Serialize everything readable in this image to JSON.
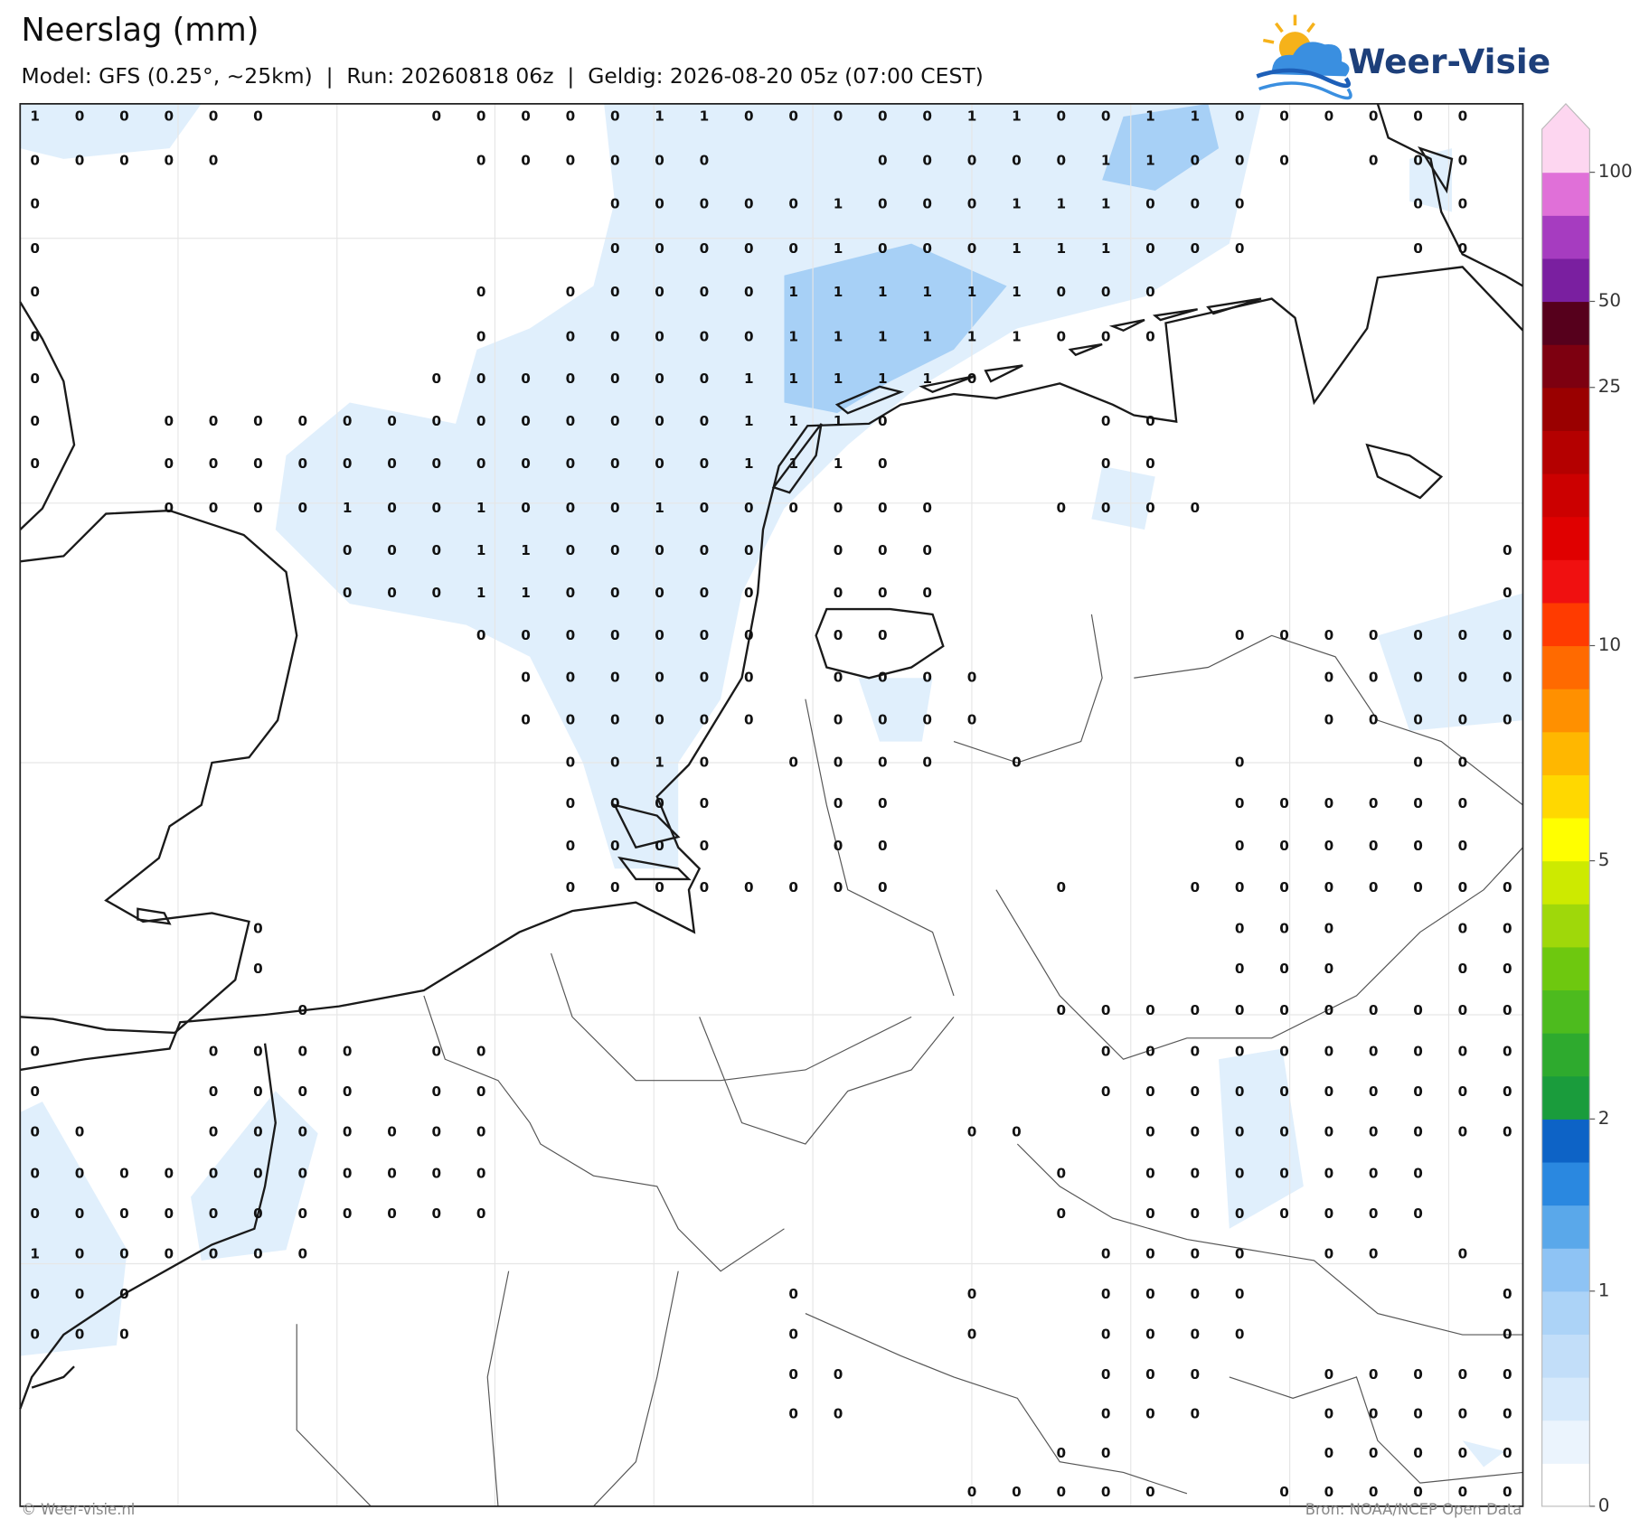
{
  "header": {
    "title": "Neerslag (mm)",
    "subtitle": "Model: GFS (0.25°, ~25km)  |  Run: 20260818 06z  |  Geldig: 2026-08-20 05z (07:00 CEST)",
    "logo": "Weer-Visie"
  },
  "map": {
    "grid_values": [
      [
        1,
        0,
        0,
        0,
        0,
        0,
        null,
        null,
        null,
        0,
        0,
        0,
        0,
        0,
        1,
        1,
        0,
        0,
        0,
        0,
        0,
        1,
        1,
        0,
        0,
        1,
        1,
        0,
        0,
        0,
        0,
        0,
        0,
        null
      ],
      [
        0,
        0,
        0,
        0,
        0,
        null,
        null,
        null,
        null,
        null,
        0,
        0,
        0,
        0,
        0,
        0,
        null,
        null,
        null,
        0,
        0,
        0,
        0,
        0,
        1,
        1,
        0,
        0,
        0,
        null,
        0,
        0,
        0,
        null
      ],
      [
        0,
        null,
        null,
        null,
        null,
        null,
        null,
        null,
        null,
        null,
        null,
        null,
        null,
        0,
        0,
        0,
        0,
        0,
        1,
        0,
        0,
        0,
        1,
        1,
        1,
        0,
        0,
        0,
        null,
        null,
        null,
        0,
        0,
        null
      ],
      [
        0,
        null,
        null,
        null,
        null,
        null,
        null,
        null,
        null,
        null,
        null,
        null,
        null,
        0,
        0,
        0,
        0,
        0,
        1,
        0,
        0,
        0,
        1,
        1,
        1,
        0,
        0,
        0,
        null,
        null,
        null,
        0,
        0,
        null
      ],
      [
        0,
        null,
        null,
        null,
        null,
        null,
        null,
        null,
        null,
        null,
        0,
        null,
        0,
        0,
        0,
        0,
        0,
        1,
        1,
        1,
        1,
        1,
        1,
        0,
        0,
        0,
        null,
        null,
        null,
        null,
        null,
        null,
        null,
        null
      ],
      [
        0,
        null,
        null,
        null,
        null,
        null,
        null,
        null,
        null,
        null,
        0,
        null,
        0,
        0,
        0,
        0,
        0,
        1,
        1,
        1,
        1,
        1,
        1,
        0,
        0,
        0,
        null,
        null,
        null,
        null,
        null,
        null,
        null,
        null
      ],
      [
        0,
        null,
        null,
        null,
        null,
        null,
        null,
        null,
        null,
        0,
        0,
        0,
        0,
        0,
        0,
        0,
        1,
        1,
        1,
        1,
        1,
        0,
        null,
        null,
        null,
        null,
        null,
        null,
        null,
        null,
        null,
        null,
        null,
        null
      ],
      [
        0,
        null,
        null,
        0,
        0,
        0,
        0,
        0,
        0,
        0,
        0,
        0,
        0,
        0,
        0,
        0,
        1,
        1,
        1,
        0,
        null,
        null,
        null,
        null,
        0,
        0,
        null,
        null,
        null,
        null,
        null,
        null,
        null,
        null
      ],
      [
        0,
        null,
        null,
        0,
        0,
        0,
        0,
        0,
        0,
        0,
        0,
        0,
        0,
        0,
        0,
        0,
        1,
        1,
        1,
        0,
        null,
        null,
        null,
        null,
        0,
        0,
        null,
        null,
        null,
        null,
        null,
        null,
        null,
        null
      ],
      [
        null,
        null,
        null,
        0,
        0,
        0,
        0,
        1,
        0,
        0,
        1,
        0,
        0,
        0,
        1,
        0,
        0,
        0,
        0,
        0,
        0,
        null,
        null,
        0,
        0,
        0,
        0,
        null,
        null,
        null,
        null,
        null,
        null,
        null
      ],
      [
        null,
        null,
        null,
        null,
        null,
        null,
        null,
        0,
        0,
        0,
        1,
        1,
        0,
        0,
        0,
        0,
        0,
        null,
        0,
        0,
        0,
        null,
        null,
        null,
        null,
        null,
        null,
        null,
        null,
        null,
        null,
        null,
        null,
        0
      ],
      [
        null,
        null,
        null,
        null,
        null,
        null,
        null,
        0,
        0,
        0,
        1,
        1,
        0,
        0,
        0,
        0,
        0,
        null,
        0,
        0,
        0,
        null,
        null,
        null,
        null,
        null,
        null,
        null,
        null,
        null,
        null,
        null,
        null,
        0
      ],
      [
        null,
        null,
        null,
        null,
        null,
        null,
        null,
        null,
        null,
        null,
        0,
        0,
        0,
        0,
        0,
        0,
        0,
        null,
        0,
        0,
        null,
        null,
        null,
        null,
        null,
        null,
        null,
        0,
        0,
        0,
        0,
        0,
        0,
        0
      ],
      [
        null,
        null,
        null,
        null,
        null,
        null,
        null,
        null,
        null,
        null,
        null,
        0,
        0,
        0,
        0,
        0,
        0,
        null,
        0,
        0,
        0,
        0,
        null,
        null,
        null,
        null,
        null,
        null,
        null,
        0,
        0,
        0,
        0,
        0
      ],
      [
        null,
        null,
        null,
        null,
        null,
        null,
        null,
        null,
        null,
        null,
        null,
        0,
        0,
        0,
        0,
        0,
        0,
        null,
        0,
        0,
        0,
        0,
        null,
        null,
        null,
        null,
        null,
        null,
        null,
        0,
        0,
        0,
        0,
        0
      ],
      [
        null,
        null,
        null,
        null,
        null,
        null,
        null,
        null,
        null,
        null,
        null,
        null,
        0,
        0,
        1,
        0,
        null,
        0,
        0,
        0,
        0,
        null,
        0,
        null,
        null,
        null,
        null,
        0,
        null,
        null,
        null,
        0,
        0,
        null
      ],
      [
        null,
        null,
        null,
        null,
        null,
        null,
        null,
        null,
        null,
        null,
        null,
        null,
        0,
        0,
        0,
        0,
        null,
        null,
        0,
        0,
        null,
        null,
        null,
        null,
        null,
        null,
        null,
        0,
        0,
        0,
        0,
        0,
        0,
        null
      ],
      [
        null,
        null,
        null,
        null,
        null,
        null,
        null,
        null,
        null,
        null,
        null,
        null,
        0,
        0,
        0,
        0,
        null,
        null,
        0,
        0,
        null,
        null,
        null,
        null,
        null,
        null,
        null,
        0,
        0,
        0,
        0,
        0,
        0,
        null
      ],
      [
        null,
        null,
        null,
        null,
        null,
        null,
        null,
        null,
        null,
        null,
        null,
        null,
        0,
        0,
        0,
        0,
        0,
        0,
        0,
        0,
        null,
        null,
        null,
        0,
        null,
        null,
        0,
        0,
        0,
        0,
        0,
        0,
        0,
        0
      ],
      [
        null,
        null,
        null,
        null,
        null,
        0,
        null,
        null,
        null,
        null,
        null,
        null,
        null,
        null,
        null,
        null,
        null,
        null,
        null,
        null,
        null,
        null,
        null,
        null,
        null,
        null,
        null,
        0,
        0,
        0,
        null,
        null,
        0,
        0
      ],
      [
        null,
        null,
        null,
        null,
        null,
        0,
        null,
        null,
        null,
        null,
        null,
        null,
        null,
        null,
        null,
        null,
        null,
        null,
        null,
        null,
        null,
        null,
        null,
        null,
        null,
        null,
        null,
        0,
        0,
        0,
        null,
        null,
        0,
        0
      ],
      [
        null,
        null,
        null,
        null,
        null,
        null,
        0,
        null,
        null,
        null,
        null,
        null,
        null,
        null,
        null,
        null,
        null,
        null,
        null,
        null,
        null,
        null,
        null,
        0,
        0,
        0,
        0,
        0,
        0,
        0,
        0,
        0,
        0,
        0
      ],
      [
        0,
        null,
        null,
        null,
        0,
        0,
        0,
        0,
        null,
        0,
        0,
        null,
        null,
        null,
        null,
        null,
        null,
        null,
        null,
        null,
        null,
        null,
        null,
        null,
        0,
        0,
        0,
        0,
        0,
        0,
        0,
        0,
        0,
        0
      ],
      [
        0,
        null,
        null,
        null,
        0,
        0,
        0,
        0,
        null,
        0,
        0,
        null,
        null,
        null,
        null,
        null,
        null,
        null,
        null,
        null,
        null,
        null,
        null,
        null,
        0,
        0,
        0,
        0,
        0,
        0,
        0,
        0,
        0,
        0
      ],
      [
        0,
        0,
        null,
        null,
        0,
        0,
        0,
        0,
        0,
        0,
        0,
        null,
        null,
        null,
        null,
        null,
        null,
        null,
        null,
        null,
        null,
        0,
        0,
        null,
        null,
        0,
        0,
        0,
        0,
        0,
        0,
        0,
        0,
        0
      ],
      [
        0,
        0,
        0,
        0,
        0,
        0,
        0,
        0,
        0,
        0,
        0,
        null,
        null,
        null,
        null,
        null,
        null,
        null,
        null,
        null,
        null,
        null,
        null,
        0,
        null,
        0,
        0,
        0,
        0,
        0,
        0,
        0,
        null,
        null
      ],
      [
        0,
        0,
        0,
        0,
        0,
        0,
        0,
        0,
        0,
        0,
        0,
        null,
        null,
        null,
        null,
        null,
        null,
        null,
        null,
        null,
        null,
        null,
        null,
        0,
        null,
        0,
        0,
        0,
        0,
        0,
        0,
        0,
        null,
        null
      ],
      [
        1,
        0,
        0,
        0,
        0,
        0,
        0,
        null,
        null,
        null,
        null,
        null,
        null,
        null,
        null,
        null,
        null,
        null,
        null,
        null,
        null,
        null,
        null,
        null,
        0,
        0,
        0,
        0,
        null,
        0,
        0,
        null,
        0,
        null
      ],
      [
        0,
        0,
        0,
        null,
        null,
        null,
        null,
        null,
        null,
        null,
        null,
        null,
        null,
        null,
        null,
        null,
        null,
        0,
        null,
        null,
        null,
        0,
        null,
        null,
        0,
        0,
        0,
        0,
        null,
        null,
        null,
        null,
        null,
        0
      ],
      [
        0,
        0,
        0,
        null,
        null,
        null,
        null,
        null,
        null,
        null,
        null,
        null,
        null,
        null,
        null,
        null,
        null,
        0,
        null,
        null,
        null,
        0,
        null,
        null,
        0,
        0,
        0,
        0,
        null,
        null,
        null,
        null,
        null,
        0
      ],
      [
        null,
        null,
        null,
        null,
        null,
        null,
        null,
        null,
        null,
        null,
        null,
        null,
        null,
        null,
        null,
        null,
        null,
        0,
        0,
        null,
        null,
        null,
        null,
        null,
        0,
        0,
        0,
        null,
        null,
        0,
        0,
        0,
        0,
        0
      ],
      [
        null,
        null,
        null,
        null,
        null,
        null,
        null,
        null,
        null,
        null,
        null,
        null,
        null,
        null,
        null,
        null,
        null,
        0,
        0,
        null,
        null,
        null,
        null,
        null,
        0,
        0,
        0,
        null,
        null,
        0,
        0,
        0,
        0,
        0
      ],
      [
        null,
        null,
        null,
        null,
        null,
        null,
        null,
        null,
        null,
        null,
        null,
        null,
        null,
        null,
        null,
        null,
        null,
        null,
        null,
        null,
        null,
        null,
        null,
        0,
        0,
        null,
        null,
        null,
        null,
        0,
        0,
        0,
        0,
        0
      ],
      [
        null,
        null,
        null,
        null,
        null,
        null,
        null,
        null,
        null,
        null,
        null,
        null,
        null,
        null,
        null,
        null,
        null,
        null,
        null,
        null,
        null,
        0,
        0,
        0,
        0,
        0,
        null,
        null,
        0,
        0,
        0,
        0,
        0,
        0
      ]
    ]
  },
  "colorbar": {
    "ticks": [
      0,
      1,
      2,
      5,
      10,
      25,
      50,
      100
    ],
    "colors": [
      "#ffffff",
      "#ebf4fd",
      "#d6e9fb",
      "#c2def9",
      "#acd3f7",
      "#8ec3f4",
      "#5aa8ea",
      "#2a88e0",
      "#0d63c6",
      "#1a9c3c",
      "#2eaa2e",
      "#4dbb1e",
      "#6ec80f",
      "#9fd80a",
      "#cdea00",
      "#ffff00",
      "#ffd800",
      "#ffb700",
      "#ff9000",
      "#ff6a00",
      "#ff3b00",
      "#f01010",
      "#e00000",
      "#cc0000",
      "#b40000",
      "#9a0000",
      "#7d0010",
      "#56001c",
      "#7a1fa0",
      "#a63cc0",
      "#e070d8",
      "#fdd6f0"
    ]
  },
  "footer": {
    "left": "© Weer-visie.nl",
    "right": "Bron: NOAA/NCEP Open Data"
  }
}
